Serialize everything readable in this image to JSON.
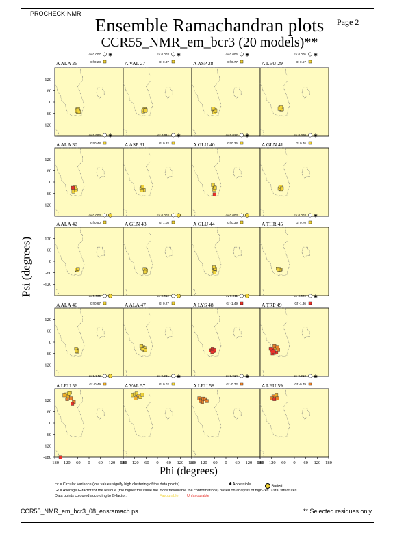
{
  "header": {
    "program": "PROCHECK-NMR",
    "page_label": "Page  2",
    "title": "Ensemble Ramachandran plots",
    "subtitle": "CCR55_NMR_em_bcr3 (20 models)**"
  },
  "colors": {
    "panel_background": "#fffbc0",
    "region_border": "#7a7a7a",
    "favourable": "#f0d33a",
    "unfavourable": "#e8322a"
  },
  "chart_data": {
    "type": "scatter",
    "xlabel": "Phi (degrees)",
    "ylabel": "Psi (degrees)",
    "xlim": [
      -180,
      180
    ],
    "ylim": [
      -180,
      180
    ],
    "x_ticks": [
      "-180",
      "-120",
      "-60",
      "0",
      "60",
      "120",
      "180"
    ],
    "y_ticks": [
      "120",
      "60",
      "0",
      "-60",
      "-120",
      "-180"
    ],
    "panels": [
      {
        "residue": "A ALA 26",
        "cv": "cv 0.007",
        "gf": "Gf 0.28",
        "accessibility": "accessible",
        "points": [
          [
            -60,
            -50,
            0.4
          ],
          [
            -55,
            -45,
            0.4
          ],
          [
            -62,
            -40,
            0.4
          ],
          [
            -58,
            -55,
            0.4
          ],
          [
            -65,
            -48,
            0.4
          ],
          [
            -57,
            -38,
            0.4
          ],
          [
            -53,
            -52,
            0.4
          ],
          [
            -60,
            -44,
            0.4
          ]
        ]
      },
      {
        "residue": "A VAL 27",
        "cv": "cv 0.003",
        "gf": "Gf 0.37",
        "accessibility": "accessible",
        "points": [
          [
            -70,
            -45,
            0.4
          ],
          [
            -65,
            -40,
            0.4
          ],
          [
            -75,
            -50,
            0.4
          ],
          [
            -68,
            -38,
            0.4
          ],
          [
            -72,
            -42,
            0.4
          ],
          [
            -66,
            -47,
            0.4
          ],
          [
            -62,
            -43,
            0.4
          ]
        ]
      },
      {
        "residue": "A ASP 28",
        "cv": "cv 0.006",
        "gf": "Gf 0.77",
        "accessibility": "accessible",
        "points": [
          [
            -65,
            -45,
            0.8
          ],
          [
            -60,
            -50,
            0.8
          ],
          [
            -68,
            -38,
            0.8
          ],
          [
            -58,
            -42,
            0.8
          ],
          [
            -62,
            -55,
            0.8
          ],
          [
            -55,
            -48,
            0.8
          ],
          [
            -66,
            -35,
            0.8
          ]
        ]
      },
      {
        "residue": "A LEU 29",
        "cv": "cv 0.005",
        "gf": "Gf 0.57",
        "accessibility": "accessible",
        "points": [
          [
            -72,
            -35,
            0.6
          ],
          [
            -68,
            -40,
            0.6
          ],
          [
            -75,
            -30,
            0.6
          ],
          [
            -65,
            -38,
            0.6
          ],
          [
            -70,
            -28,
            0.6
          ],
          [
            -78,
            -36,
            0.6
          ]
        ]
      },
      {
        "residue": "A ALA 30",
        "cv": "cv 0.009",
        "gf": "Gf 0.48",
        "accessibility": "accessible",
        "points": [
          [
            -78,
            -35,
            0.5
          ],
          [
            -72,
            -40,
            0.5
          ],
          [
            -80,
            -42,
            0.5
          ],
          [
            -75,
            -28,
            0.5
          ],
          [
            -68,
            -38,
            0.5
          ],
          [
            -82,
            -50,
            0.5
          ],
          [
            -70,
            -45,
            0.5
          ],
          [
            -85,
            -30,
            -1.2
          ]
        ]
      },
      {
        "residue": "A ASP 31",
        "cv": "cv 0.011",
        "gf": "Gf 0.32",
        "accessibility": "accessible",
        "points": [
          [
            -80,
            -30,
            0.3
          ],
          [
            -75,
            -38,
            0.3
          ],
          [
            -85,
            -35,
            0.3
          ],
          [
            -78,
            -25,
            0.3
          ],
          [
            -72,
            -42,
            0.3
          ],
          [
            -82,
            -45,
            0.3
          ]
        ]
      },
      {
        "residue": "A GLU 40",
        "cv": "cv 0.012",
        "gf": "Gf 0.35",
        "accessibility": "accessible",
        "points": [
          [
            -65,
            -25,
            0.4
          ],
          [
            -60,
            -35,
            0.4
          ],
          [
            -68,
            -15,
            0.4
          ],
          [
            -62,
            -40,
            0.4
          ],
          [
            -58,
            -30,
            0.4
          ],
          [
            -60,
            -65,
            -1.5
          ]
        ]
      },
      {
        "residue": "A GLN 41",
        "cv": "cv 0.008",
        "gf": "Gf 0.76",
        "accessibility": "accessible",
        "points": [
          [
            -75,
            -30,
            0.8
          ],
          [
            -70,
            -38,
            0.8
          ],
          [
            -78,
            -35,
            0.8
          ],
          [
            -72,
            -25,
            0.8
          ],
          [
            -66,
            -33,
            0.8
          ]
        ]
      },
      {
        "residue": "A ALA 42",
        "cv": "cv 0.003",
        "gf": "Gf 0.50",
        "accessibility": "buried",
        "points": [
          [
            -63,
            -45,
            0.5
          ],
          [
            -60,
            -48,
            0.5
          ],
          [
            -66,
            -42,
            0.5
          ],
          [
            -58,
            -40,
            0.5
          ]
        ]
      },
      {
        "residue": "A GLN 43",
        "cv": "cv 0.003",
        "gf": "Gf 1.08",
        "accessibility": "buried",
        "points": [
          [
            -65,
            -45,
            1.0
          ],
          [
            -62,
            -52,
            1.0
          ],
          [
            -68,
            -40,
            1.0
          ],
          [
            -60,
            -48,
            1.0
          ],
          [
            -66,
            -55,
            1.0
          ]
        ]
      },
      {
        "residue": "A GLU 44",
        "cv": "cv 0.003",
        "gf": "Gf 0.39",
        "accessibility": "buried",
        "points": [
          [
            -62,
            -35,
            0.4
          ],
          [
            -58,
            -45,
            0.4
          ],
          [
            -65,
            -50,
            0.4
          ],
          [
            -60,
            -58,
            0.4
          ],
          [
            -56,
            -40,
            0.4
          ],
          [
            -63,
            -28,
            0.4
          ]
        ]
      },
      {
        "residue": "A THR 45",
        "cv": "cv 0.003",
        "gf": "Gf 0.70",
        "accessibility": "accessible",
        "points": [
          [
            -80,
            -40,
            0.7
          ],
          [
            -72,
            -42,
            0.7
          ],
          [
            -88,
            -38,
            0.7
          ],
          [
            -76,
            -45,
            0.7
          ],
          [
            -84,
            -44,
            0.7
          ]
        ]
      },
      {
        "residue": "A ALA 46",
        "cv": "cv 0.005",
        "gf": "Gf 0.67",
        "accessibility": "buried",
        "points": [
          [
            -65,
            -40,
            0.7
          ],
          [
            -60,
            -45,
            0.7
          ],
          [
            -68,
            -35,
            0.7
          ],
          [
            -62,
            -50,
            0.7
          ],
          [
            -66,
            -48,
            0.7
          ]
        ]
      },
      {
        "residue": "A ALA 47",
        "cv": "cv 0.012",
        "gf": "Gf 0.27",
        "accessibility": "buried",
        "points": [
          [
            -75,
            -25,
            0.3
          ],
          [
            -68,
            -32,
            0.3
          ],
          [
            -82,
            -30,
            0.3
          ],
          [
            -72,
            -40,
            0.3
          ],
          [
            -85,
            -20,
            0.3
          ],
          [
            -65,
            -42,
            0.3
          ],
          [
            -78,
            -36,
            0.3
          ]
        ]
      },
      {
        "residue": "A LYS 48",
        "cv": "cv 0.011",
        "gf": "Gf -1.49",
        "accessibility": "buried",
        "points": [
          [
            -75,
            -40,
            -1.0
          ],
          [
            -65,
            -48,
            -1.2
          ],
          [
            -80,
            -45,
            -1.6
          ],
          [
            -70,
            -35,
            -1.4
          ],
          [
            -60,
            -42,
            -1.5
          ],
          [
            -72,
            -52,
            -1.8
          ]
        ]
      },
      {
        "residue": "A TRP 49",
        "cv": "cv 0.029",
        "gf": "Gf -1.36",
        "accessibility": "accessible",
        "points": [
          [
            -110,
            -40,
            -1.2
          ],
          [
            -100,
            -30,
            -0.5
          ],
          [
            -120,
            -45,
            -1.6
          ],
          [
            -95,
            -55,
            -1.5
          ],
          [
            -105,
            -20,
            -0.8
          ],
          [
            -115,
            -60,
            -1.7
          ],
          [
            -90,
            -25,
            -0.6
          ],
          [
            -125,
            -35,
            -1.3
          ],
          [
            -85,
            -40,
            -1.0
          ],
          [
            -108,
            -50,
            -1.4
          ]
        ]
      },
      {
        "residue": "A LEU 56",
        "cv": "cv 0.043",
        "gf": "Gf -0.49",
        "accessibility": "buried",
        "points": [
          [
            -120,
            150,
            0.3
          ],
          [
            -110,
            140,
            -0.2
          ],
          [
            -100,
            160,
            0.1
          ],
          [
            -95,
            130,
            -0.9
          ],
          [
            -115,
            125,
            -0.6
          ],
          [
            -105,
            155,
            0.2
          ],
          [
            -80,
            110,
            -1.0
          ],
          [
            -88,
            100,
            -1.2
          ],
          [
            -130,
            145,
            -0.4
          ],
          [
            -150,
            -180,
            -1.8
          ]
        ]
      },
      {
        "residue": "A VAL 57",
        "cv": "cv 0.031",
        "gf": "Gf 0.02",
        "accessibility": "accessible",
        "points": [
          [
            -130,
            145,
            0.2
          ],
          [
            -120,
            150,
            0.1
          ],
          [
            -110,
            155,
            0.3
          ],
          [
            -100,
            140,
            -0.2
          ],
          [
            -90,
            135,
            0.1
          ],
          [
            -115,
            130,
            -0.3
          ],
          [
            -80,
            148,
            0.0
          ]
        ]
      },
      {
        "residue": "A LEU 58",
        "cv": "cv 0.014",
        "gf": "Gf -0.72",
        "accessibility": "accessible",
        "points": [
          [
            -140,
            130,
            -0.6
          ],
          [
            -130,
            120,
            -0.5
          ],
          [
            -120,
            128,
            -0.8
          ],
          [
            -110,
            125,
            -0.7
          ],
          [
            -125,
            110,
            -0.9
          ],
          [
            -100,
            115,
            -0.6
          ],
          [
            -135,
            115,
            -1.0
          ]
        ]
      },
      {
        "residue": "A LEU 59",
        "cv": "cv 0.013",
        "gf": "Gf -0.79",
        "accessibility": "accessible",
        "points": [
          [
            -110,
            140,
            -0.8
          ],
          [
            -100,
            135,
            -0.7
          ],
          [
            -95,
            145,
            -0.5
          ],
          [
            -120,
            130,
            -0.9
          ],
          [
            -105,
            125,
            -1.1
          ],
          [
            -90,
            130,
            -0.6
          ]
        ]
      }
    ]
  },
  "footnotes": {
    "cv_note": "cv = Circular Variance (low values signify high clustering of the data points).",
    "gf_note": "Gf = Average G-factor for the residue (the higher the value the more favourable the conformations) based on analysis of high-res. Xstal structures",
    "colour_note": "Data points coloured according to G-factor:",
    "favourable_label": "Favourable",
    "unfavourable_label": "Unfavourable",
    "accessible_label": "Accessible",
    "buried_label": "Buried"
  },
  "footer": {
    "filename": "CCR55_NMR_em_bcr3_08_ensramach.ps",
    "note": "** Selected residues only"
  }
}
